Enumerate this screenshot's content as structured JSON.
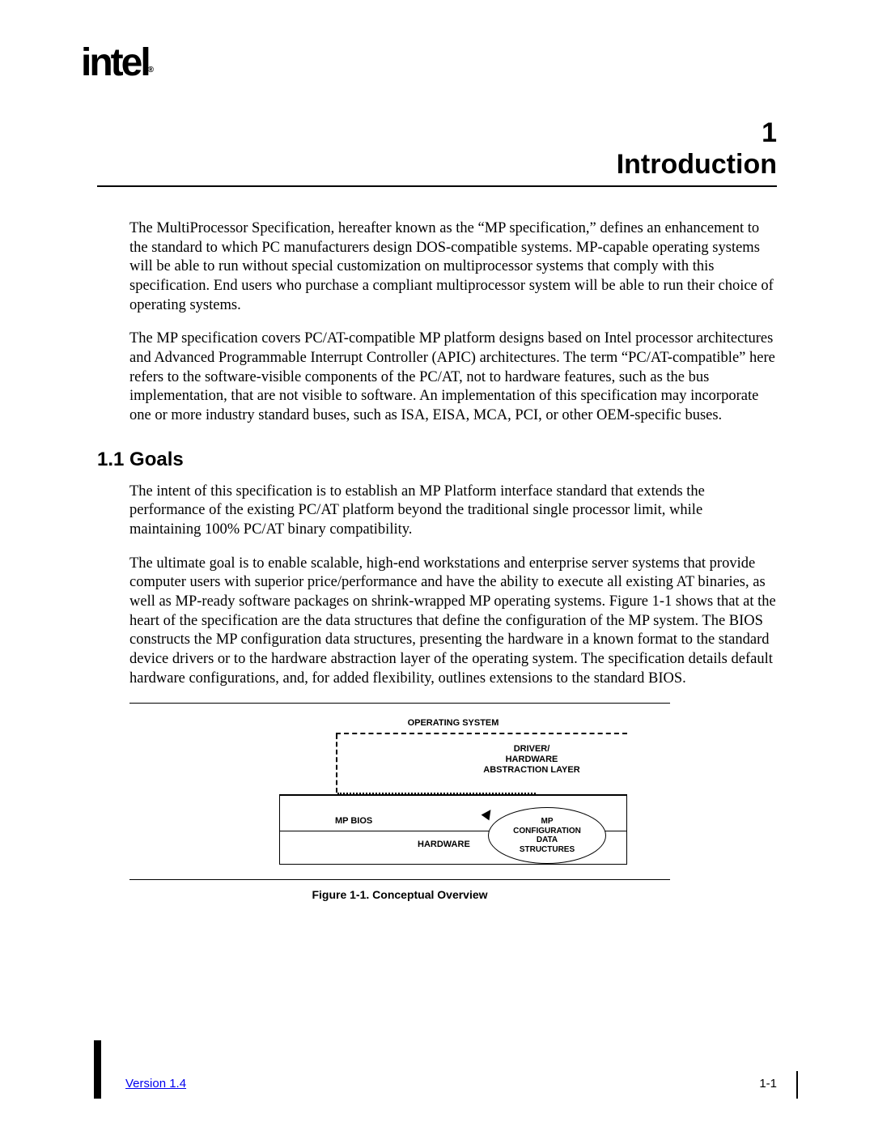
{
  "logo": {
    "text": "intel",
    "sub": "®"
  },
  "chapter": {
    "number": "1",
    "title": "Introduction"
  },
  "para1": "The MultiProcessor Specification, hereafter known as the “MP specification,” defines an enhancement to the standard to which PC manufacturers design DOS-compatible systems. MP-capable operating systems will be able to run without special customization on multiprocessor systems that comply with this specification.  End users who purchase a compliant multiprocessor system will be able to run their choice of operating systems.",
  "para2": "The MP specification covers PC/AT-compatible MP platform designs based on Intel processor architectures and Advanced Programmable Interrupt Controller (APIC) architectures.  The term “PC/AT-compatible” here refers to the software-visible components of the PC/AT, not to hardware features, such as the bus implementation, that are not visible to software.  An implementation of this specification may incorporate one or more industry standard buses, such as ISA, EISA, MCA, PCI, or other OEM-specific buses.",
  "section1": {
    "heading": "1.1  Goals"
  },
  "para3": "The intent of this specification is to establish an MP Platform interface standard that extends the performance of the existing PC/AT platform beyond the traditional single processor limit, while maintaining 100% PC/AT binary compatibility.",
  "para4": "The ultimate goal is to enable scalable, high-end workstations and enterprise server systems that provide computer users with superior price/performance and have the ability to execute all existing AT binaries, as well as MP-ready software packages on shrink-wrapped MP operating systems. Figure 1-1 shows that at the heart of the specification are the data structures that define the configuration of the MP system.  The BIOS constructs the MP configuration data structures, presenting the hardware in a known format to the standard device drivers or to the hardware abstraction layer of the operating system.  The specification details default hardware configurations, and, for added flexibility, outlines extensions to the standard BIOS.",
  "diagram": {
    "os": "OPERATING SYSTEM",
    "driver_l1": "DRIVER/",
    "driver_l2": "HARDWARE",
    "driver_l3": "ABSTRACTION LAYER",
    "mp_bios": "MP BIOS",
    "hardware": "HARDWARE",
    "ellipse_l1": "MP",
    "ellipse_l2": "CONFIGURATION",
    "ellipse_l3": "DATA",
    "ellipse_l4": "STRUCTURES"
  },
  "figure_caption": "Figure 1-1.  Conceptual Overview",
  "footer": {
    "version": "Version 1.4",
    "page": "1-1"
  }
}
